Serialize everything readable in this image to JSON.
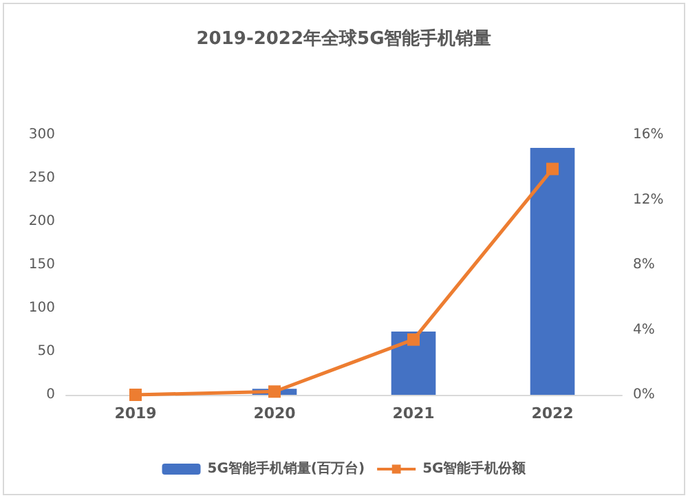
{
  "chart_data": {
    "type": "bar",
    "title": "2019-2022年全球5G智能手机销量",
    "categories": [
      "2019",
      "2020",
      "2021",
      "2022"
    ],
    "series": [
      {
        "name": "5G智能手机销量(百万台)",
        "color": "#4472c4",
        "values": [
          null,
          7,
          73,
          285
        ]
      },
      {
        "name": "5G智能手机份额",
        "type": "line",
        "axis": "y2",
        "color": "#ed7d31",
        "marker": "square",
        "values": [
          0,
          0.2,
          3.4,
          13.9
        ]
      }
    ],
    "ylim": [
      0,
      300
    ],
    "yticks": [
      0,
      50,
      100,
      150,
      200,
      250,
      300
    ],
    "y2lim": [
      0,
      16
    ],
    "y2ticks": [
      {
        "value": 0,
        "label": "0%"
      },
      {
        "value": 4,
        "label": "4%"
      },
      {
        "value": 8,
        "label": "8%"
      },
      {
        "value": 12,
        "label": "12%"
      },
      {
        "value": 16,
        "label": "16%"
      }
    ],
    "grid": false,
    "legend": "bottom"
  }
}
